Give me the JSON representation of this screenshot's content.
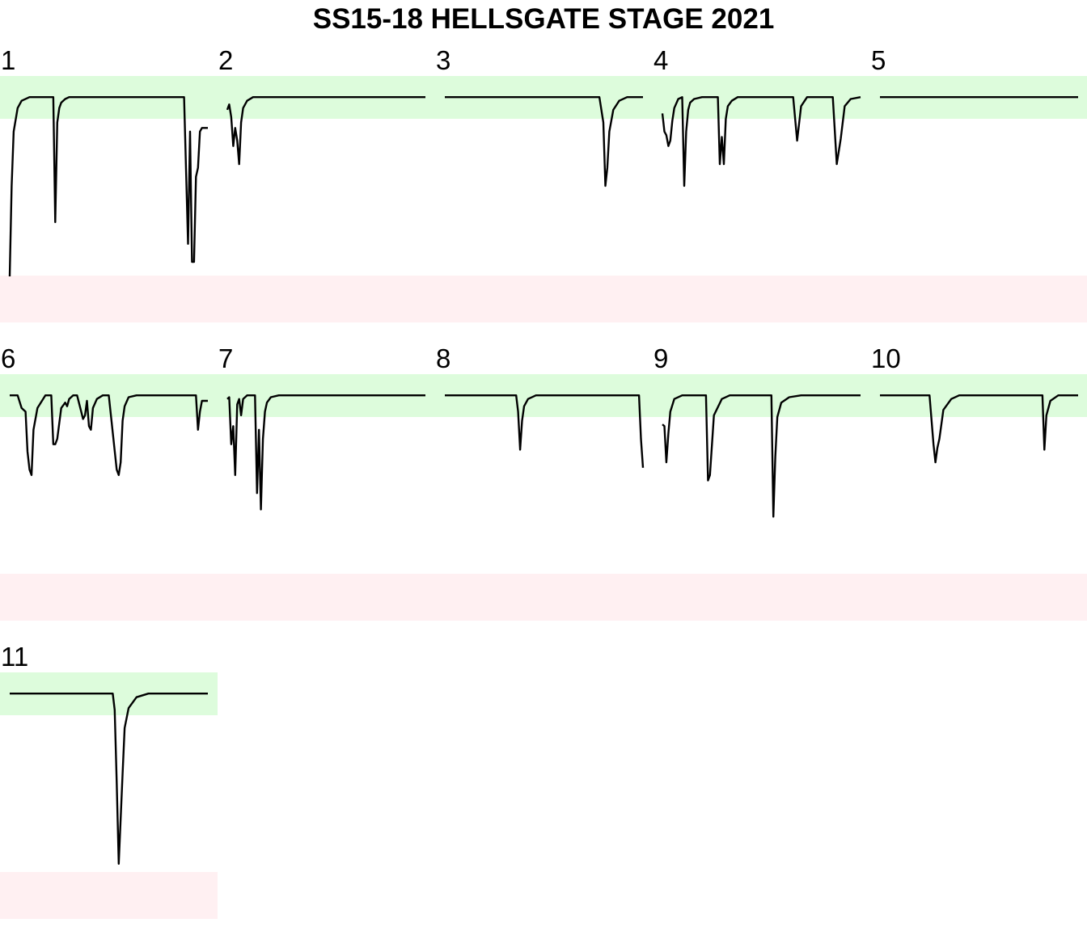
{
  "title": "SS15-18 HELLSGATE STAGE 2021",
  "colors": {
    "good_band": "#ddfcdc",
    "bad_band": "#fff0f2",
    "line": "#000000",
    "background": "#ffffff"
  },
  "chart_data": {
    "type": "line",
    "title": "SS15-18 HELLSGATE STAGE 2021",
    "layout": "small-multiples 5 columns x 3 rows",
    "grid": false,
    "axes": "none",
    "y_range": [
      0,
      1
    ],
    "note_bands": "top band = high-value zone (green), bottom band = low-value zone (pink)",
    "panels": [
      {
        "label": "1",
        "x": [
          0,
          0.01,
          0.02,
          0.04,
          0.06,
          0.1,
          0.14,
          0.2,
          0.22,
          0.23,
          0.24,
          0.25,
          0.26,
          0.28,
          0.3,
          0.34,
          0.4,
          0.5,
          0.6,
          0.7,
          0.8,
          0.88,
          0.9,
          0.91,
          0.92,
          0.93,
          0.94,
          0.95,
          0.96,
          0.97,
          1.0
        ],
        "values": [
          0.0,
          0.5,
          0.8,
          0.93,
          0.97,
          0.99,
          0.99,
          0.99,
          0.99,
          0.3,
          0.85,
          0.93,
          0.96,
          0.98,
          0.99,
          0.99,
          0.99,
          0.99,
          0.99,
          0.99,
          0.99,
          0.99,
          0.18,
          0.8,
          0.08,
          0.08,
          0.55,
          0.6,
          0.8,
          0.82,
          0.82
        ]
      },
      {
        "label": "2",
        "x": [
          0,
          0.01,
          0.02,
          0.03,
          0.04,
          0.05,
          0.06,
          0.07,
          0.08,
          0.1,
          0.13,
          0.2,
          0.4,
          0.6,
          0.8,
          1.0
        ],
        "values": [
          0.92,
          0.95,
          0.88,
          0.72,
          0.82,
          0.75,
          0.62,
          0.85,
          0.93,
          0.97,
          0.99,
          0.99,
          0.99,
          0.99,
          0.99,
          0.99
        ]
      },
      {
        "label": "3",
        "x": [
          0,
          0.2,
          0.4,
          0.6,
          0.78,
          0.8,
          0.81,
          0.82,
          0.83,
          0.85,
          0.88,
          0.92,
          0.96,
          1.0
        ],
        "values": [
          0.99,
          0.99,
          0.99,
          0.99,
          0.99,
          0.85,
          0.5,
          0.6,
          0.8,
          0.92,
          0.97,
          0.99,
          0.99,
          0.99
        ]
      },
      {
        "label": "4",
        "x": [
          0,
          0.01,
          0.02,
          0.03,
          0.04,
          0.05,
          0.06,
          0.08,
          0.1,
          0.11,
          0.12,
          0.13,
          0.14,
          0.16,
          0.2,
          0.26,
          0.28,
          0.29,
          0.3,
          0.31,
          0.32,
          0.33,
          0.35,
          0.38,
          0.42,
          0.6,
          0.66,
          0.68,
          0.7,
          0.73,
          0.8,
          0.86,
          0.88,
          0.9,
          0.92,
          0.95,
          1.0
        ],
        "values": [
          0.9,
          0.8,
          0.78,
          0.72,
          0.75,
          0.86,
          0.93,
          0.98,
          0.99,
          0.5,
          0.8,
          0.92,
          0.96,
          0.98,
          0.99,
          0.99,
          0.99,
          0.62,
          0.77,
          0.62,
          0.87,
          0.94,
          0.97,
          0.99,
          0.99,
          0.99,
          0.99,
          0.75,
          0.94,
          0.99,
          0.99,
          0.99,
          0.62,
          0.76,
          0.94,
          0.98,
          0.99
        ]
      },
      {
        "label": "5",
        "x": [
          0,
          0.25,
          0.5,
          0.75,
          1.0
        ],
        "values": [
          0.99,
          0.99,
          0.99,
          0.99,
          0.99
        ]
      },
      {
        "label": "6",
        "x": [
          0,
          0.04,
          0.06,
          0.08,
          0.09,
          0.1,
          0.11,
          0.12,
          0.14,
          0.18,
          0.21,
          0.22,
          0.23,
          0.24,
          0.26,
          0.28,
          0.29,
          0.3,
          0.32,
          0.34,
          0.37,
          0.38,
          0.39,
          0.4,
          0.41,
          0.42,
          0.44,
          0.47,
          0.5,
          0.54,
          0.55,
          0.56,
          0.57,
          0.58,
          0.6,
          0.64,
          0.7,
          0.8,
          0.9,
          0.94,
          0.95,
          0.96,
          0.97,
          1.0
        ],
        "values": [
          0.99,
          0.99,
          0.92,
          0.9,
          0.68,
          0.58,
          0.55,
          0.8,
          0.92,
          0.99,
          0.99,
          0.72,
          0.72,
          0.75,
          0.92,
          0.95,
          0.93,
          0.97,
          0.99,
          0.99,
          0.86,
          0.88,
          0.96,
          0.82,
          0.8,
          0.92,
          0.97,
          0.99,
          0.99,
          0.58,
          0.55,
          0.62,
          0.85,
          0.93,
          0.98,
          0.99,
          0.99,
          0.99,
          0.99,
          0.99,
          0.8,
          0.9,
          0.96,
          0.96
        ]
      },
      {
        "label": "7",
        "x": [
          0,
          0.01,
          0.02,
          0.03,
          0.04,
          0.05,
          0.06,
          0.07,
          0.08,
          0.1,
          0.14,
          0.15,
          0.16,
          0.17,
          0.18,
          0.19,
          0.2,
          0.22,
          0.26,
          0.3,
          0.4,
          0.6,
          0.8,
          1.0
        ],
        "values": [
          0.97,
          0.98,
          0.72,
          0.82,
          0.55,
          0.94,
          0.97,
          0.88,
          0.97,
          0.99,
          0.99,
          0.45,
          0.8,
          0.36,
          0.75,
          0.9,
          0.95,
          0.98,
          0.99,
          0.99,
          0.99,
          0.99,
          0.99,
          0.99
        ]
      },
      {
        "label": "8",
        "x": [
          0,
          0.2,
          0.36,
          0.37,
          0.38,
          0.39,
          0.4,
          0.42,
          0.46,
          0.5,
          0.7,
          0.98,
          0.99,
          1.0
        ],
        "values": [
          0.99,
          0.99,
          0.99,
          0.9,
          0.69,
          0.85,
          0.93,
          0.97,
          0.99,
          0.99,
          0.99,
          0.99,
          0.75,
          0.59
        ]
      },
      {
        "label": "9",
        "x": [
          0,
          0.01,
          0.02,
          0.03,
          0.04,
          0.06,
          0.1,
          0.16,
          0.2,
          0.22,
          0.23,
          0.24,
          0.26,
          0.3,
          0.34,
          0.4,
          0.55,
          0.56,
          0.57,
          0.58,
          0.6,
          0.64,
          0.7,
          0.8,
          1.0
        ],
        "values": [
          0.83,
          0.82,
          0.62,
          0.78,
          0.9,
          0.97,
          0.99,
          0.99,
          0.99,
          0.99,
          0.52,
          0.55,
          0.88,
          0.97,
          0.99,
          0.99,
          0.99,
          0.32,
          0.65,
          0.87,
          0.95,
          0.98,
          0.99,
          0.99,
          0.99
        ]
      },
      {
        "label": "10",
        "x": [
          0,
          0.25,
          0.27,
          0.28,
          0.29,
          0.3,
          0.32,
          0.36,
          0.4,
          0.6,
          0.8,
          0.82,
          0.83,
          0.84,
          0.86,
          0.9,
          1.0
        ],
        "values": [
          0.99,
          0.99,
          0.72,
          0.62,
          0.7,
          0.75,
          0.91,
          0.97,
          0.99,
          0.99,
          0.99,
          0.99,
          0.69,
          0.88,
          0.96,
          0.99,
          0.99
        ]
      },
      {
        "label": "11",
        "x": [
          0,
          0.2,
          0.4,
          0.52,
          0.53,
          0.54,
          0.55,
          0.56,
          0.57,
          0.58,
          0.6,
          0.64,
          0.7,
          0.8,
          1.0
        ],
        "values": [
          0.99,
          0.99,
          0.99,
          0.99,
          0.9,
          0.5,
          0.05,
          0.3,
          0.55,
          0.8,
          0.91,
          0.97,
          0.99,
          0.99,
          0.99
        ]
      }
    ]
  }
}
